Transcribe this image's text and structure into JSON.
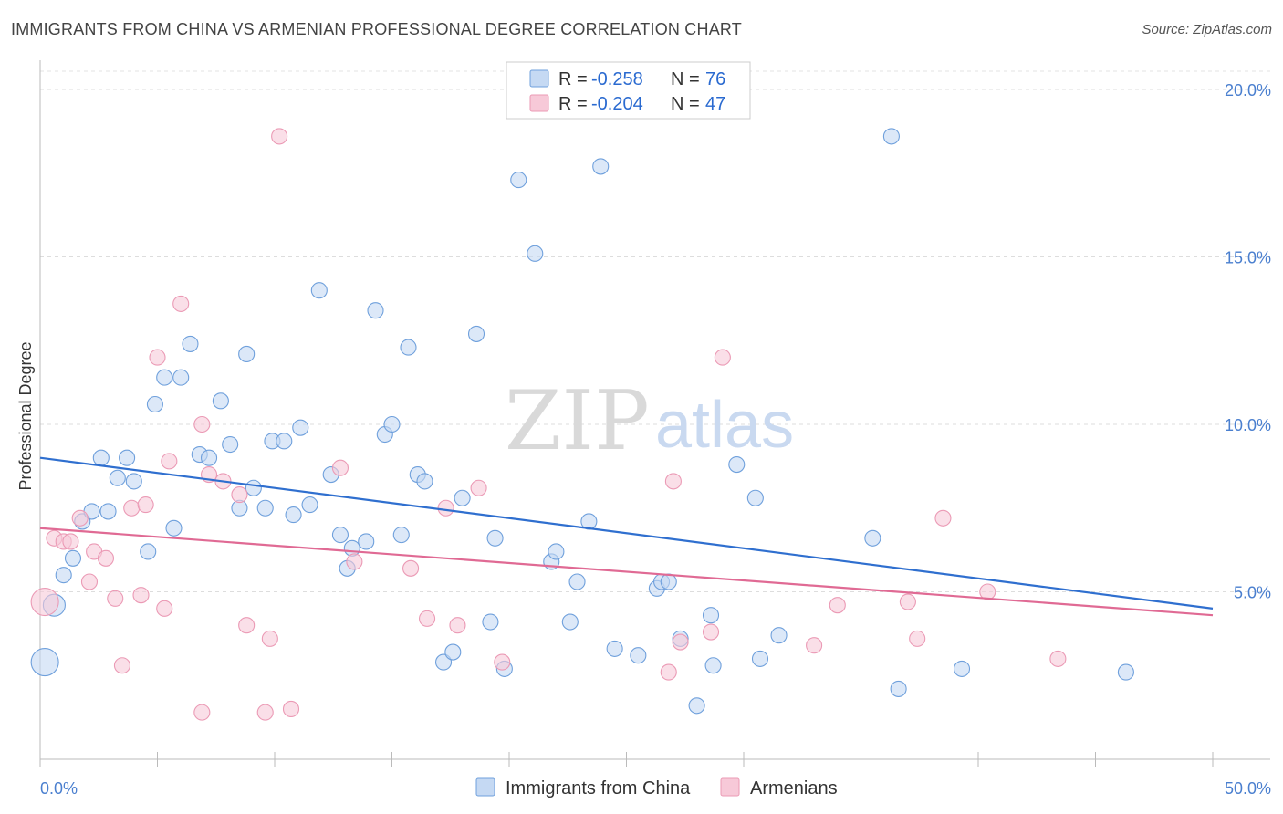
{
  "title": "IMMIGRANTS FROM CHINA VS ARMENIAN PROFESSIONAL DEGREE CORRELATION CHART",
  "source": "Source: ZipAtlas.com",
  "watermark": {
    "zip": "ZIP",
    "atlas": "atlas"
  },
  "legend": {
    "r_label": "R =",
    "n_label": "N =",
    "rows": [
      {
        "r": "-0.258",
        "n": "76"
      },
      {
        "r": "-0.204",
        "n": "47"
      }
    ]
  },
  "chart_data": {
    "type": "scatter",
    "title": "IMMIGRANTS FROM CHINA VS ARMENIAN PROFESSIONAL DEGREE CORRELATION CHART",
    "xlabel": "",
    "ylabel": "Professional Degree",
    "xlim": [
      0,
      50
    ],
    "ylim": [
      0,
      20.6
    ],
    "x_tick_labels": [
      "0.0%",
      "50.0%"
    ],
    "y_ticks": [
      5,
      10,
      15,
      20
    ],
    "y_tick_labels": [
      "5.0%",
      "10.0%",
      "15.0%",
      "20.0%"
    ],
    "series": [
      {
        "name": "Immigrants from China",
        "color": "#6fa0dc",
        "fill": "#c5d9f3",
        "trend": {
          "x": [
            0,
            50
          ],
          "y": [
            9.0,
            4.5
          ],
          "color": "#2f6fcf"
        },
        "points": [
          {
            "x": 0.2,
            "y": 2.9,
            "s": "big"
          },
          {
            "x": 0.6,
            "y": 4.6,
            "s": "mid"
          },
          {
            "x": 1.0,
            "y": 5.5
          },
          {
            "x": 1.4,
            "y": 6.0
          },
          {
            "x": 1.8,
            "y": 7.1
          },
          {
            "x": 2.2,
            "y": 7.4
          },
          {
            "x": 2.6,
            "y": 9.0
          },
          {
            "x": 2.9,
            "y": 7.4
          },
          {
            "x": 3.3,
            "y": 8.4
          },
          {
            "x": 3.7,
            "y": 9.0
          },
          {
            "x": 4.0,
            "y": 8.3
          },
          {
            "x": 4.6,
            "y": 6.2
          },
          {
            "x": 4.9,
            "y": 10.6
          },
          {
            "x": 5.3,
            "y": 11.4
          },
          {
            "x": 5.7,
            "y": 6.9
          },
          {
            "x": 6.0,
            "y": 11.4
          },
          {
            "x": 6.4,
            "y": 12.4
          },
          {
            "x": 6.8,
            "y": 9.1
          },
          {
            "x": 7.2,
            "y": 9.0
          },
          {
            "x": 7.7,
            "y": 10.7
          },
          {
            "x": 8.1,
            "y": 9.4
          },
          {
            "x": 8.5,
            "y": 7.5
          },
          {
            "x": 8.8,
            "y": 12.1
          },
          {
            "x": 9.1,
            "y": 8.1
          },
          {
            "x": 9.6,
            "y": 7.5
          },
          {
            "x": 9.9,
            "y": 9.5
          },
          {
            "x": 10.4,
            "y": 9.5
          },
          {
            "x": 10.8,
            "y": 7.3
          },
          {
            "x": 11.1,
            "y": 9.9
          },
          {
            "x": 11.5,
            "y": 7.6
          },
          {
            "x": 11.9,
            "y": 14.0
          },
          {
            "x": 12.4,
            "y": 8.5
          },
          {
            "x": 12.8,
            "y": 6.7
          },
          {
            "x": 13.1,
            "y": 5.7
          },
          {
            "x": 13.3,
            "y": 6.3
          },
          {
            "x": 13.9,
            "y": 6.5
          },
          {
            "x": 14.3,
            "y": 13.4
          },
          {
            "x": 14.7,
            "y": 9.7
          },
          {
            "x": 15.0,
            "y": 10.0
          },
          {
            "x": 15.4,
            "y": 6.7
          },
          {
            "x": 15.7,
            "y": 12.3
          },
          {
            "x": 16.1,
            "y": 8.5
          },
          {
            "x": 16.4,
            "y": 8.3
          },
          {
            "x": 17.2,
            "y": 2.9
          },
          {
            "x": 17.6,
            "y": 3.2
          },
          {
            "x": 18.0,
            "y": 7.8
          },
          {
            "x": 18.6,
            "y": 12.7
          },
          {
            "x": 19.2,
            "y": 4.1
          },
          {
            "x": 19.4,
            "y": 6.6
          },
          {
            "x": 19.8,
            "y": 2.7
          },
          {
            "x": 20.4,
            "y": 17.3
          },
          {
            "x": 21.1,
            "y": 15.1
          },
          {
            "x": 21.8,
            "y": 5.9
          },
          {
            "x": 22.0,
            "y": 6.2
          },
          {
            "x": 22.6,
            "y": 4.1
          },
          {
            "x": 22.9,
            "y": 5.3
          },
          {
            "x": 23.4,
            "y": 7.1
          },
          {
            "x": 23.9,
            "y": 17.7
          },
          {
            "x": 24.5,
            "y": 3.3
          },
          {
            "x": 25.5,
            "y": 3.1
          },
          {
            "x": 26.3,
            "y": 5.1
          },
          {
            "x": 26.5,
            "y": 5.3
          },
          {
            "x": 26.8,
            "y": 5.3
          },
          {
            "x": 27.3,
            "y": 3.6
          },
          {
            "x": 28.0,
            "y": 1.6
          },
          {
            "x": 28.6,
            "y": 4.3
          },
          {
            "x": 28.7,
            "y": 2.8
          },
          {
            "x": 29.7,
            "y": 8.8
          },
          {
            "x": 30.5,
            "y": 7.8
          },
          {
            "x": 30.7,
            "y": 3.0
          },
          {
            "x": 31.5,
            "y": 3.7
          },
          {
            "x": 35.5,
            "y": 6.6
          },
          {
            "x": 36.3,
            "y": 18.6
          },
          {
            "x": 36.6,
            "y": 2.1
          },
          {
            "x": 39.3,
            "y": 2.7
          },
          {
            "x": 46.3,
            "y": 2.6
          }
        ]
      },
      {
        "name": "Armenians",
        "color": "#eb9ab5",
        "fill": "#f7c9d8",
        "trend": {
          "x": [
            0,
            50
          ],
          "y": [
            6.9,
            4.3
          ],
          "color": "#e06a94"
        },
        "points": [
          {
            "x": 0.2,
            "y": 4.7,
            "s": "big"
          },
          {
            "x": 0.6,
            "y": 6.6
          },
          {
            "x": 1.0,
            "y": 6.5
          },
          {
            "x": 1.3,
            "y": 6.5
          },
          {
            "x": 1.7,
            "y": 7.2
          },
          {
            "x": 2.1,
            "y": 5.3
          },
          {
            "x": 2.3,
            "y": 6.2
          },
          {
            "x": 2.8,
            "y": 6.0
          },
          {
            "x": 3.2,
            "y": 4.8
          },
          {
            "x": 3.5,
            "y": 2.8
          },
          {
            "x": 3.9,
            "y": 7.5
          },
          {
            "x": 4.3,
            "y": 4.9
          },
          {
            "x": 4.5,
            "y": 7.6
          },
          {
            "x": 5.0,
            "y": 12.0
          },
          {
            "x": 5.3,
            "y": 4.5
          },
          {
            "x": 5.5,
            "y": 8.9
          },
          {
            "x": 6.0,
            "y": 13.6
          },
          {
            "x": 6.9,
            "y": 1.4
          },
          {
            "x": 6.9,
            "y": 10.0
          },
          {
            "x": 7.2,
            "y": 8.5
          },
          {
            "x": 7.8,
            "y": 8.3
          },
          {
            "x": 8.5,
            "y": 7.9
          },
          {
            "x": 8.8,
            "y": 4.0
          },
          {
            "x": 9.6,
            "y": 1.4
          },
          {
            "x": 9.8,
            "y": 3.6
          },
          {
            "x": 10.2,
            "y": 18.6
          },
          {
            "x": 10.7,
            "y": 1.5
          },
          {
            "x": 12.8,
            "y": 8.7
          },
          {
            "x": 13.4,
            "y": 5.9
          },
          {
            "x": 15.8,
            "y": 5.7
          },
          {
            "x": 16.5,
            "y": 4.2
          },
          {
            "x": 17.3,
            "y": 7.5
          },
          {
            "x": 17.8,
            "y": 4.0
          },
          {
            "x": 18.7,
            "y": 8.1
          },
          {
            "x": 19.7,
            "y": 2.9
          },
          {
            "x": 26.8,
            "y": 2.6
          },
          {
            "x": 27.0,
            "y": 8.3
          },
          {
            "x": 27.3,
            "y": 3.5
          },
          {
            "x": 28.6,
            "y": 3.8
          },
          {
            "x": 29.1,
            "y": 12.0
          },
          {
            "x": 33.0,
            "y": 3.4
          },
          {
            "x": 34.0,
            "y": 4.6
          },
          {
            "x": 37.0,
            "y": 4.7
          },
          {
            "x": 37.4,
            "y": 3.6
          },
          {
            "x": 38.5,
            "y": 7.2
          },
          {
            "x": 40.4,
            "y": 5.0
          },
          {
            "x": 43.4,
            "y": 3.0
          }
        ]
      }
    ]
  }
}
